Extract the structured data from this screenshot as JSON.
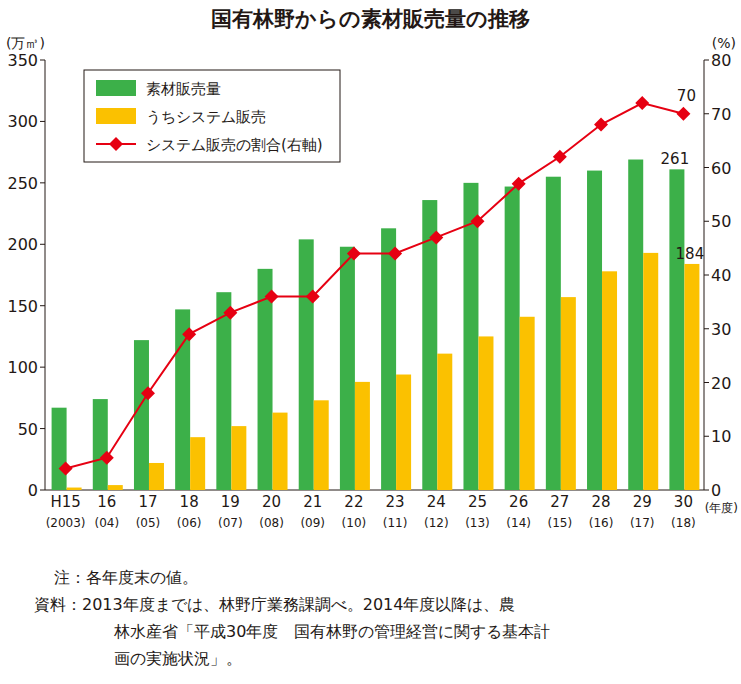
{
  "chart_data": {
    "type": "bar",
    "title": "国有林野からの素材販売量の推移",
    "y_label": "(万㎥)",
    "y2_label": "(%)",
    "x_label": "(年度)",
    "categories": [
      "H15\n(2003)",
      "16\n(04)",
      "17\n(05)",
      "18\n(06)",
      "19\n(07)",
      "20\n(08)",
      "21\n(09)",
      "22\n(10)",
      "23\n(11)",
      "24\n(12)",
      "25\n(13)",
      "26\n(14)",
      "27\n(15)",
      "28\n(16)",
      "29\n(17)",
      "30\n(18)"
    ],
    "series": [
      {
        "name": "素材販売量",
        "type": "bar",
        "color": "#3cb049",
        "values": [
          67,
          74,
          122,
          147,
          161,
          180,
          204,
          198,
          213,
          236,
          250,
          247,
          255,
          260,
          269,
          261
        ]
      },
      {
        "name": "うちシステム販売",
        "type": "bar",
        "color": "#fbc100",
        "values": [
          2,
          4,
          22,
          43,
          52,
          63,
          73,
          88,
          94,
          111,
          125,
          141,
          157,
          178,
          193,
          184
        ]
      },
      {
        "name": "システム販売の割合(右軸)",
        "type": "line",
        "axis": "y2",
        "color": "#e60012",
        "marker": "diamond",
        "line_style": "solid",
        "values": [
          4,
          6,
          18,
          29,
          33,
          36,
          36,
          44,
          44,
          47,
          50,
          57,
          62,
          68,
          72,
          70
        ]
      }
    ],
    "annotations": [
      {
        "text": "70",
        "series": 2,
        "index": 15
      },
      {
        "text": "261",
        "series": 0,
        "index": 15
      },
      {
        "text": "184",
        "series": 1,
        "index": 15
      }
    ],
    "ylim": [
      0,
      350
    ],
    "yticks": [
      0,
      50,
      100,
      150,
      200,
      250,
      300,
      350
    ],
    "y2lim": [
      0,
      80
    ],
    "y2ticks": [
      0,
      10,
      20,
      30,
      40,
      50,
      60,
      70,
      80
    ],
    "grid": false,
    "legend": "upper left",
    "notes": [
      "注：各年度末の値。",
      "資料：2013年度までは、林野庁業務課調べ。2014年度以降は、農",
      "林水産省「平成30年度　国有林野の管理経営に関する基本計",
      "画の実施状況」。"
    ]
  }
}
